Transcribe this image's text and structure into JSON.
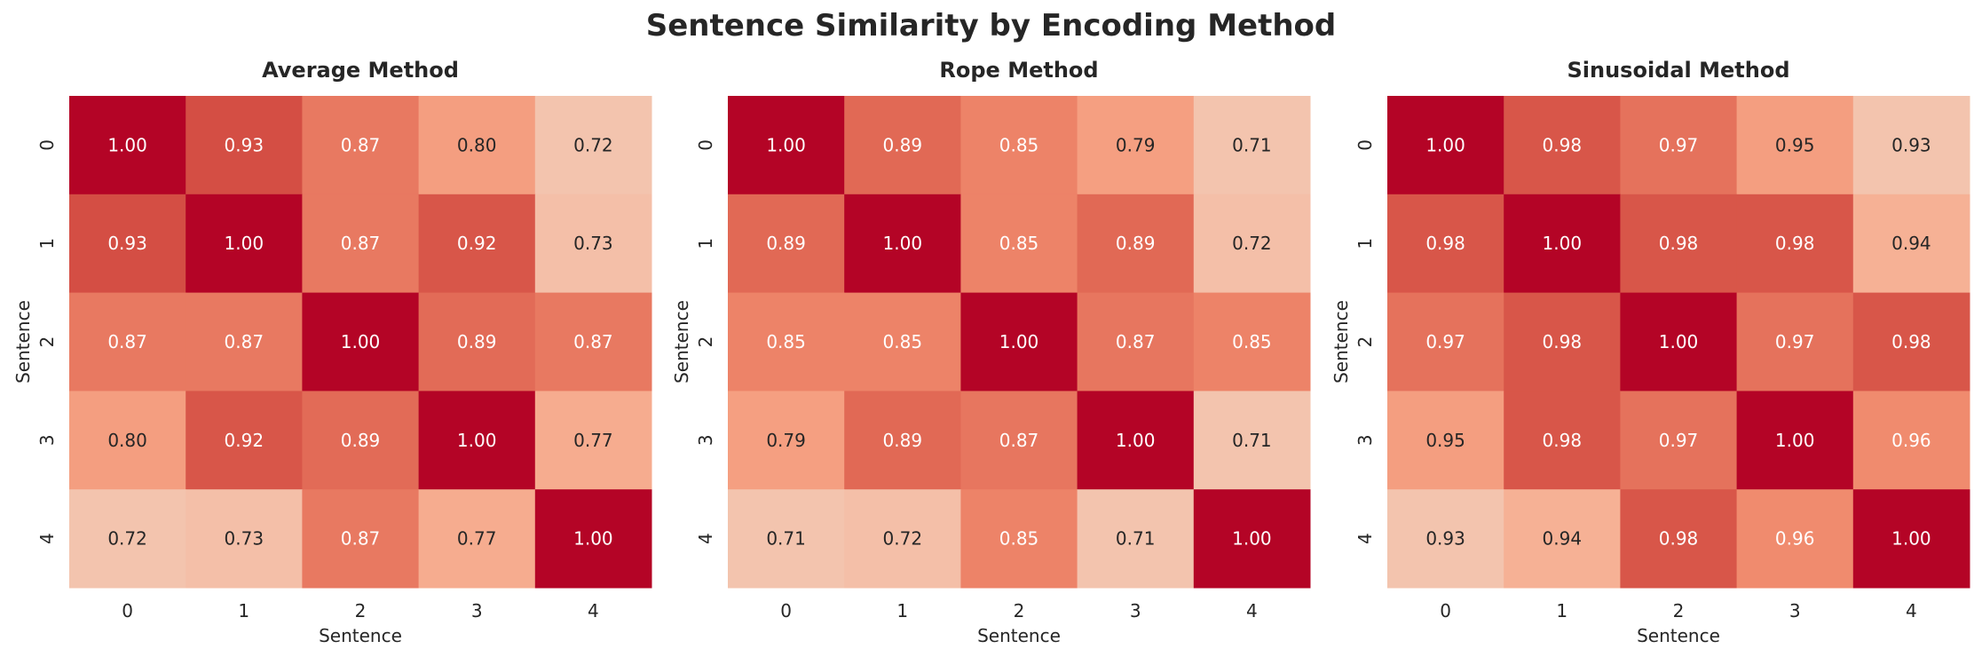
{
  "title": "Sentence Similarity by Encoding Method",
  "colors": {
    "high": "#b40426",
    "low": "#f7a889",
    "text_dark": "#262626",
    "text_light": "#ffffff"
  },
  "chart_data": [
    {
      "type": "heatmap",
      "title": "Average Method",
      "xlabel": "Sentence",
      "ylabel": "Sentence",
      "x_ticks": [
        "0",
        "1",
        "2",
        "3",
        "4"
      ],
      "y_ticks": [
        "0",
        "1",
        "2",
        "3",
        "4"
      ],
      "grid": false,
      "colorbar": false,
      "values": [
        [
          1.0,
          0.93,
          0.87,
          0.8,
          0.72
        ],
        [
          0.93,
          1.0,
          0.87,
          0.92,
          0.73
        ],
        [
          0.87,
          0.87,
          1.0,
          0.89,
          0.87
        ],
        [
          0.8,
          0.92,
          0.89,
          1.0,
          0.77
        ],
        [
          0.72,
          0.73,
          0.87,
          0.77,
          1.0
        ]
      ]
    },
    {
      "type": "heatmap",
      "title": "Rope Method",
      "xlabel": "Sentence",
      "ylabel": "Sentence",
      "x_ticks": [
        "0",
        "1",
        "2",
        "3",
        "4"
      ],
      "y_ticks": [
        "0",
        "1",
        "2",
        "3",
        "4"
      ],
      "grid": false,
      "colorbar": false,
      "values": [
        [
          1.0,
          0.89,
          0.85,
          0.79,
          0.71
        ],
        [
          0.89,
          1.0,
          0.85,
          0.89,
          0.72
        ],
        [
          0.85,
          0.85,
          1.0,
          0.87,
          0.85
        ],
        [
          0.79,
          0.89,
          0.87,
          1.0,
          0.71
        ],
        [
          0.71,
          0.72,
          0.85,
          0.71,
          1.0
        ]
      ]
    },
    {
      "type": "heatmap",
      "title": "Sinusoidal Method",
      "xlabel": "Sentence",
      "ylabel": "Sentence",
      "x_ticks": [
        "0",
        "1",
        "2",
        "3",
        "4"
      ],
      "y_ticks": [
        "0",
        "1",
        "2",
        "3",
        "4"
      ],
      "grid": false,
      "colorbar": false,
      "values": [
        [
          1.0,
          0.98,
          0.97,
          0.95,
          0.93
        ],
        [
          0.98,
          1.0,
          0.98,
          0.98,
          0.94
        ],
        [
          0.97,
          0.98,
          1.0,
          0.97,
          0.98
        ],
        [
          0.95,
          0.98,
          0.97,
          1.0,
          0.96
        ],
        [
          0.93,
          0.94,
          0.98,
          0.96,
          1.0
        ]
      ]
    }
  ]
}
